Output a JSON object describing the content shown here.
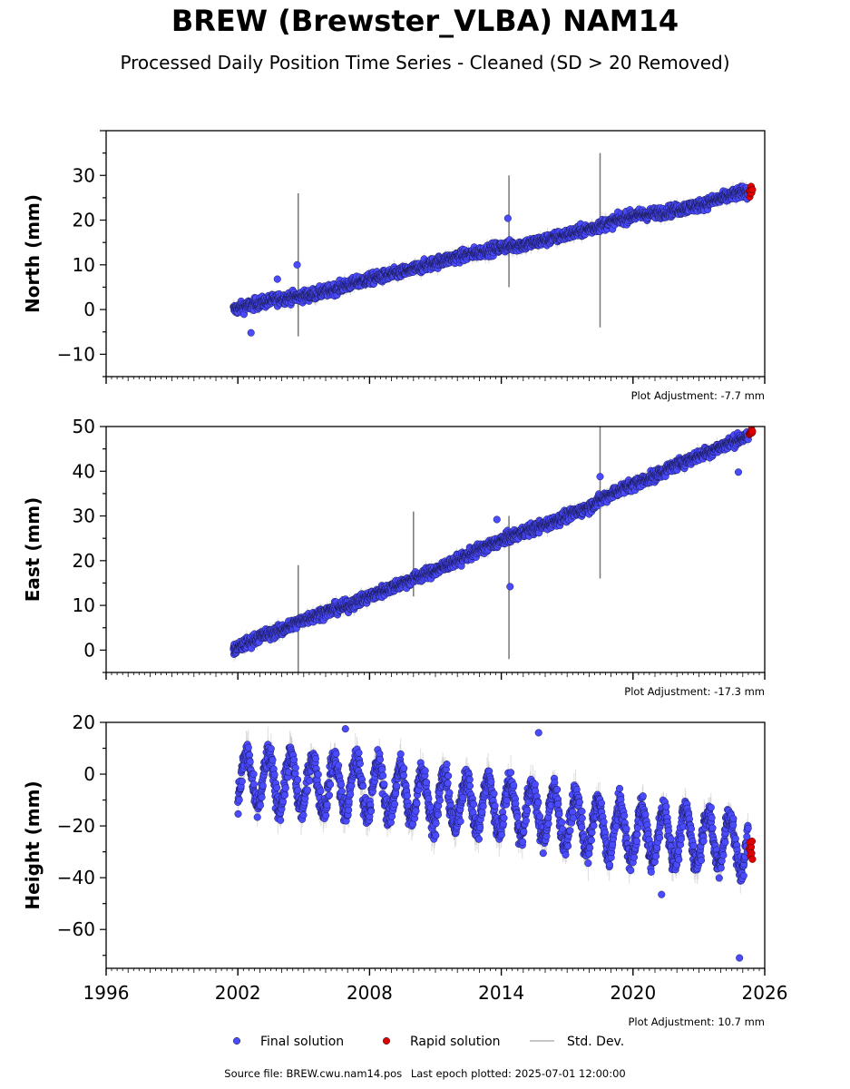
{
  "title": "BREW (Brewster_VLBA) NAM14",
  "subtitle": "Processed Daily Position Time Series - Cleaned (SD > 20 Removed)",
  "footer": {
    "source": "Source file: BREW.cwu.nam14.pos",
    "last_epoch": "Last epoch plotted: 2025-07-01 12:00:00"
  },
  "legend": {
    "placement": "bottom-center",
    "entries": [
      {
        "label": "Final solution",
        "color": "#4a4aff",
        "marker": "circle"
      },
      {
        "label": "Rapid solution",
        "color": "#e00000",
        "marker": "circle"
      },
      {
        "label": "Std. Dev.",
        "color": "#c8c8c8",
        "marker": "line"
      }
    ]
  },
  "colors": {
    "final": "#4a4aff",
    "rapid": "#e00000",
    "sd": "#a0a0a0",
    "frame": "#000000"
  },
  "chart_data": [
    {
      "type": "scatter",
      "ylabel": "North (mm)",
      "xlim": [
        1996,
        2026
      ],
      "ylim": [
        -15,
        40
      ],
      "yticks": [
        -10,
        0,
        10,
        20,
        30
      ],
      "adjustment": "Plot Adjustment: -7.7 mm",
      "series": [
        {
          "name": "Final solution",
          "values": [
            [
              2001.8,
              0.0
            ],
            [
              2003.0,
              1.5
            ],
            [
              2004.0,
              2.5
            ],
            [
              2005.0,
              3.0
            ],
            [
              2006.0,
              4.0
            ],
            [
              2007.0,
              5.5
            ],
            [
              2008.0,
              6.8
            ],
            [
              2009.0,
              7.8
            ],
            [
              2010.0,
              9.0
            ],
            [
              2011.0,
              10.5
            ],
            [
              2012.0,
              11.8
            ],
            [
              2013.0,
              12.8
            ],
            [
              2014.0,
              14.0
            ],
            [
              2015.0,
              14.5
            ],
            [
              2016.0,
              15.5
            ],
            [
              2017.0,
              16.8
            ],
            [
              2018.0,
              18.0
            ],
            [
              2019.0,
              19.5
            ],
            [
              2020.0,
              21.0
            ],
            [
              2021.0,
              21.5
            ],
            [
              2022.0,
              22.3
            ],
            [
              2023.0,
              23.3
            ],
            [
              2024.0,
              24.8
            ],
            [
              2025.0,
              26.3
            ]
          ]
        },
        {
          "name": "Rapid solution",
          "values": [
            [
              2025.3,
              26.0
            ],
            [
              2025.45,
              27.0
            ]
          ]
        }
      ],
      "outliers": [
        [
          2002.6,
          -5.2
        ],
        [
          2003.8,
          6.8
        ],
        [
          2004.7,
          10.0
        ],
        [
          2014.3,
          20.4
        ]
      ],
      "sd_spikes": [
        [
          2004.75,
          -6,
          26
        ],
        [
          2018.5,
          -4,
          35
        ],
        [
          2014.35,
          5,
          30
        ]
      ]
    },
    {
      "type": "scatter",
      "ylabel": "East (mm)",
      "xlim": [
        1996,
        2026
      ],
      "ylim": [
        -5,
        50
      ],
      "yticks": [
        0,
        10,
        20,
        30,
        40,
        50
      ],
      "adjustment": "Plot Adjustment: -17.3 mm",
      "series": [
        {
          "name": "Final solution",
          "values": [
            [
              2001.8,
              0.0
            ],
            [
              2003.0,
              3.0
            ],
            [
              2004.0,
              4.5
            ],
            [
              2005.0,
              6.8
            ],
            [
              2006.0,
              8.5
            ],
            [
              2007.0,
              10.0
            ],
            [
              2008.0,
              12.0
            ],
            [
              2009.0,
              14.0
            ],
            [
              2010.0,
              16.0
            ],
            [
              2011.0,
              17.8
            ],
            [
              2012.0,
              20.0
            ],
            [
              2013.0,
              22.5
            ],
            [
              2014.0,
              24.5
            ],
            [
              2015.0,
              26.5
            ],
            [
              2016.0,
              28.0
            ],
            [
              2017.0,
              30.0
            ],
            [
              2018.0,
              32.0
            ],
            [
              2019.0,
              35.0
            ],
            [
              2020.0,
              37.0
            ],
            [
              2021.0,
              39.0
            ],
            [
              2022.0,
              41.5
            ],
            [
              2023.0,
              43.5
            ],
            [
              2024.0,
              45.5
            ],
            [
              2025.0,
              47.5
            ]
          ]
        },
        {
          "name": "Rapid solution",
          "values": [
            [
              2025.3,
              48.5
            ],
            [
              2025.45,
              49.2
            ]
          ]
        }
      ],
      "outliers": [
        [
          2014.4,
          14.2
        ],
        [
          2018.5,
          38.8
        ],
        [
          2024.8,
          39.8
        ],
        [
          2013.8,
          29.2
        ]
      ],
      "sd_spikes": [
        [
          2004.75,
          -5,
          19
        ],
        [
          2018.5,
          16,
          50
        ],
        [
          2014.35,
          -2,
          30
        ],
        [
          2010.0,
          12,
          31
        ]
      ]
    },
    {
      "type": "scatter",
      "ylabel": "Height (mm)",
      "xlabel": "",
      "xlim": [
        1996,
        2026
      ],
      "ylim": [
        -75,
        20
      ],
      "yticks": [
        -60,
        -40,
        -20,
        0,
        20
      ],
      "xticks": [
        1996,
        2002,
        2008,
        2014,
        2020,
        2026
      ],
      "adjustment": "Plot Adjustment: 10.7 mm",
      "series": [
        {
          "name": "Final solution",
          "values": [
            [
              2002.0,
              -2.0
            ],
            [
              2004.0,
              -3.0
            ],
            [
              2006.0,
              -4.0
            ],
            [
              2008.0,
              -5.0
            ],
            [
              2010.0,
              -8.0
            ],
            [
              2012.0,
              -11.0
            ],
            [
              2014.0,
              -12.0
            ],
            [
              2016.0,
              -15.0
            ],
            [
              2018.0,
              -20.0
            ],
            [
              2020.0,
              -23.0
            ],
            [
              2022.0,
              -24.0
            ],
            [
              2024.0,
              -25.0
            ],
            [
              2025.2,
              -28.0
            ]
          ]
        },
        {
          "name": "Rapid solution",
          "values": [
            [
              2025.3,
              -28.0
            ],
            [
              2025.45,
              -31.0
            ]
          ]
        }
      ],
      "outliers": [
        [
          2024.85,
          -71.0
        ],
        [
          2015.7,
          16.0
        ],
        [
          2006.9,
          17.5
        ],
        [
          2021.3,
          -46.5
        ]
      ]
    }
  ]
}
